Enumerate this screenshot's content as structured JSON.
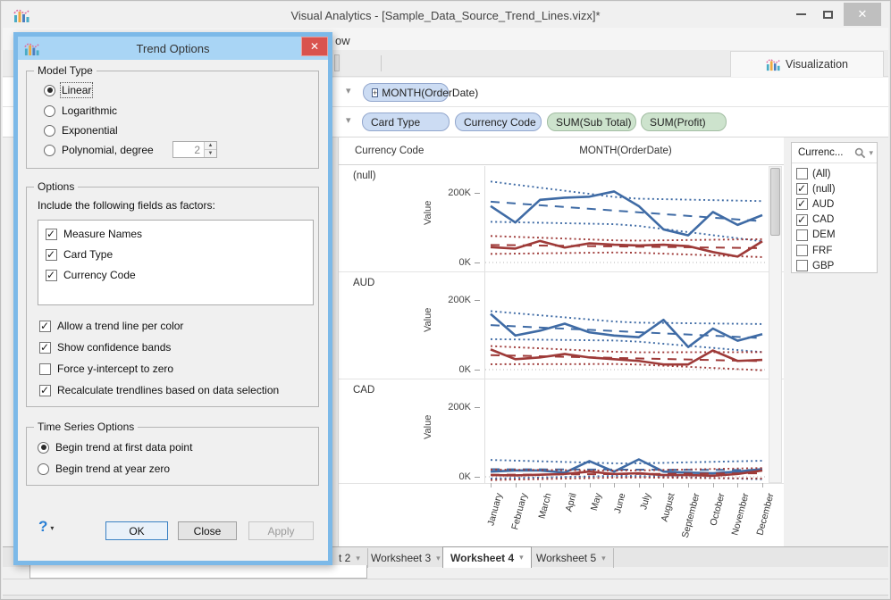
{
  "window": {
    "title": "Visual Analytics - [Sample_Data_Source_Trend_Lines.vizx]*"
  },
  "menubar": {
    "fragment": "ow"
  },
  "toolbar": {
    "visualization_tab": "Visualization"
  },
  "shelves": {
    "columns_pill": "MONTH(OrderDate)",
    "columns_pill_expander": "+",
    "rows_pills": [
      {
        "label": "Card Type",
        "kind": "dimension"
      },
      {
        "label": "Currency Code",
        "kind": "dimension"
      },
      {
        "label": "SUM(Sub Total)",
        "kind": "measure"
      },
      {
        "label": "SUM(Profit)",
        "kind": "measure"
      }
    ]
  },
  "chart": {
    "row_header": "Currency Code",
    "col_header": "MONTH(OrderDate)",
    "y_label": "Value",
    "tick_top": "200K",
    "tick_zero": "0K"
  },
  "chart_data": [
    {
      "type": "line",
      "row_label": "(null)",
      "title": "(null) panel: Value by MONTH(OrderDate), linear trend with confidence bands",
      "categories": [
        "January",
        "February",
        "March",
        "April",
        "May",
        "June",
        "July",
        "August",
        "September",
        "October",
        "November",
        "December"
      ],
      "ylim": [
        0,
        260
      ],
      "yticks": [
        "0K",
        "200K"
      ],
      "grid": "zero-line-dotted",
      "trend": "linear",
      "confidence_bands": true,
      "series": [
        {
          "name": "SUM(Sub Total)",
          "color": "#3f6ba5",
          "values": [
            162,
            115,
            180,
            186,
            189,
            204,
            162,
            95,
            78,
            145,
            108,
            136
          ]
        },
        {
          "name": "SUM(Profit)",
          "color": "#9e3a38",
          "values": [
            44,
            40,
            62,
            43,
            55,
            51,
            49,
            51,
            47,
            30,
            17,
            61
          ]
        }
      ]
    },
    {
      "type": "line",
      "row_label": "AUD",
      "title": "AUD panel: Value by MONTH(OrderDate), linear trend with confidence bands",
      "categories": [
        "January",
        "February",
        "March",
        "April",
        "May",
        "June",
        "July",
        "August",
        "September",
        "October",
        "November",
        "December"
      ],
      "ylim": [
        0,
        260
      ],
      "yticks": [
        "0K",
        "200K"
      ],
      "grid": "zero-line-dotted",
      "trend": "linear",
      "confidence_bands": true,
      "series": [
        {
          "name": "SUM(Sub Total)",
          "color": "#3f6ba5",
          "values": [
            160,
            98,
            112,
            132,
            107,
            98,
            93,
            143,
            65,
            118,
            83,
            102
          ]
        },
        {
          "name": "SUM(Profit)",
          "color": "#9e3a38",
          "values": [
            58,
            30,
            35,
            45,
            35,
            30,
            25,
            15,
            15,
            55,
            25,
            28
          ]
        }
      ]
    },
    {
      "type": "line",
      "row_label": "CAD",
      "title": "CAD panel: Value by MONTH(OrderDate), linear trend with confidence bands",
      "categories": [
        "January",
        "February",
        "March",
        "April",
        "May",
        "June",
        "July",
        "August",
        "September",
        "October",
        "November",
        "December"
      ],
      "ylim": [
        0,
        260
      ],
      "yticks": [
        "0K",
        "200K"
      ],
      "grid": "zero-line-dotted",
      "trend": "linear",
      "confidence_bands": true,
      "series": [
        {
          "name": "SUM(Sub Total)",
          "color": "#3f6ba5",
          "values": [
            15,
            18,
            18,
            12,
            45,
            15,
            50,
            15,
            12,
            10,
            15,
            22
          ]
        },
        {
          "name": "SUM(Profit)",
          "color": "#9e3a38",
          "values": [
            5,
            4,
            6,
            8,
            15,
            8,
            10,
            5,
            5,
            3,
            8,
            18
          ]
        }
      ]
    }
  ],
  "legend": {
    "title": "Currenc...",
    "items": [
      {
        "label": "(All)",
        "checked": false
      },
      {
        "label": "(null)",
        "checked": true
      },
      {
        "label": "AUD",
        "checked": true
      },
      {
        "label": "CAD",
        "checked": true
      },
      {
        "label": "DEM",
        "checked": false
      },
      {
        "label": "FRF",
        "checked": false
      },
      {
        "label": "GBP",
        "checked": false
      }
    ]
  },
  "tabs": {
    "fragment": "t 2",
    "items": [
      {
        "label": "Worksheet 3",
        "active": false
      },
      {
        "label": "Worksheet 4",
        "active": true
      },
      {
        "label": "Worksheet 5",
        "active": false
      }
    ]
  },
  "dialog": {
    "title": "Trend Options",
    "model_type": {
      "label": "Model Type",
      "options": [
        {
          "label": "Linear",
          "selected": true
        },
        {
          "label": "Logarithmic",
          "selected": false
        },
        {
          "label": "Exponential",
          "selected": false
        },
        {
          "label": "Polynomial, degree",
          "selected": false
        }
      ],
      "degree_value": "2"
    },
    "options": {
      "label": "Options",
      "factors_label": "Include the following fields as factors:",
      "factors": [
        {
          "label": "Measure Names",
          "checked": true
        },
        {
          "label": "Card Type",
          "checked": true
        },
        {
          "label": "Currency Code",
          "checked": true
        }
      ],
      "checkboxes": [
        {
          "label": "Allow a trend line per color",
          "checked": true
        },
        {
          "label": "Show confidence bands",
          "checked": true
        },
        {
          "label": "Force y-intercept to zero",
          "checked": false
        },
        {
          "label": "Recalculate trendlines based on data selection",
          "checked": true
        }
      ]
    },
    "time_series": {
      "label": "Time Series Options",
      "options": [
        {
          "label": "Begin trend at first data point",
          "selected": true
        },
        {
          "label": "Begin trend at year zero",
          "selected": false
        }
      ]
    },
    "buttons": {
      "help": "?",
      "ok": "OK",
      "close": "Close",
      "apply": "Apply"
    }
  }
}
